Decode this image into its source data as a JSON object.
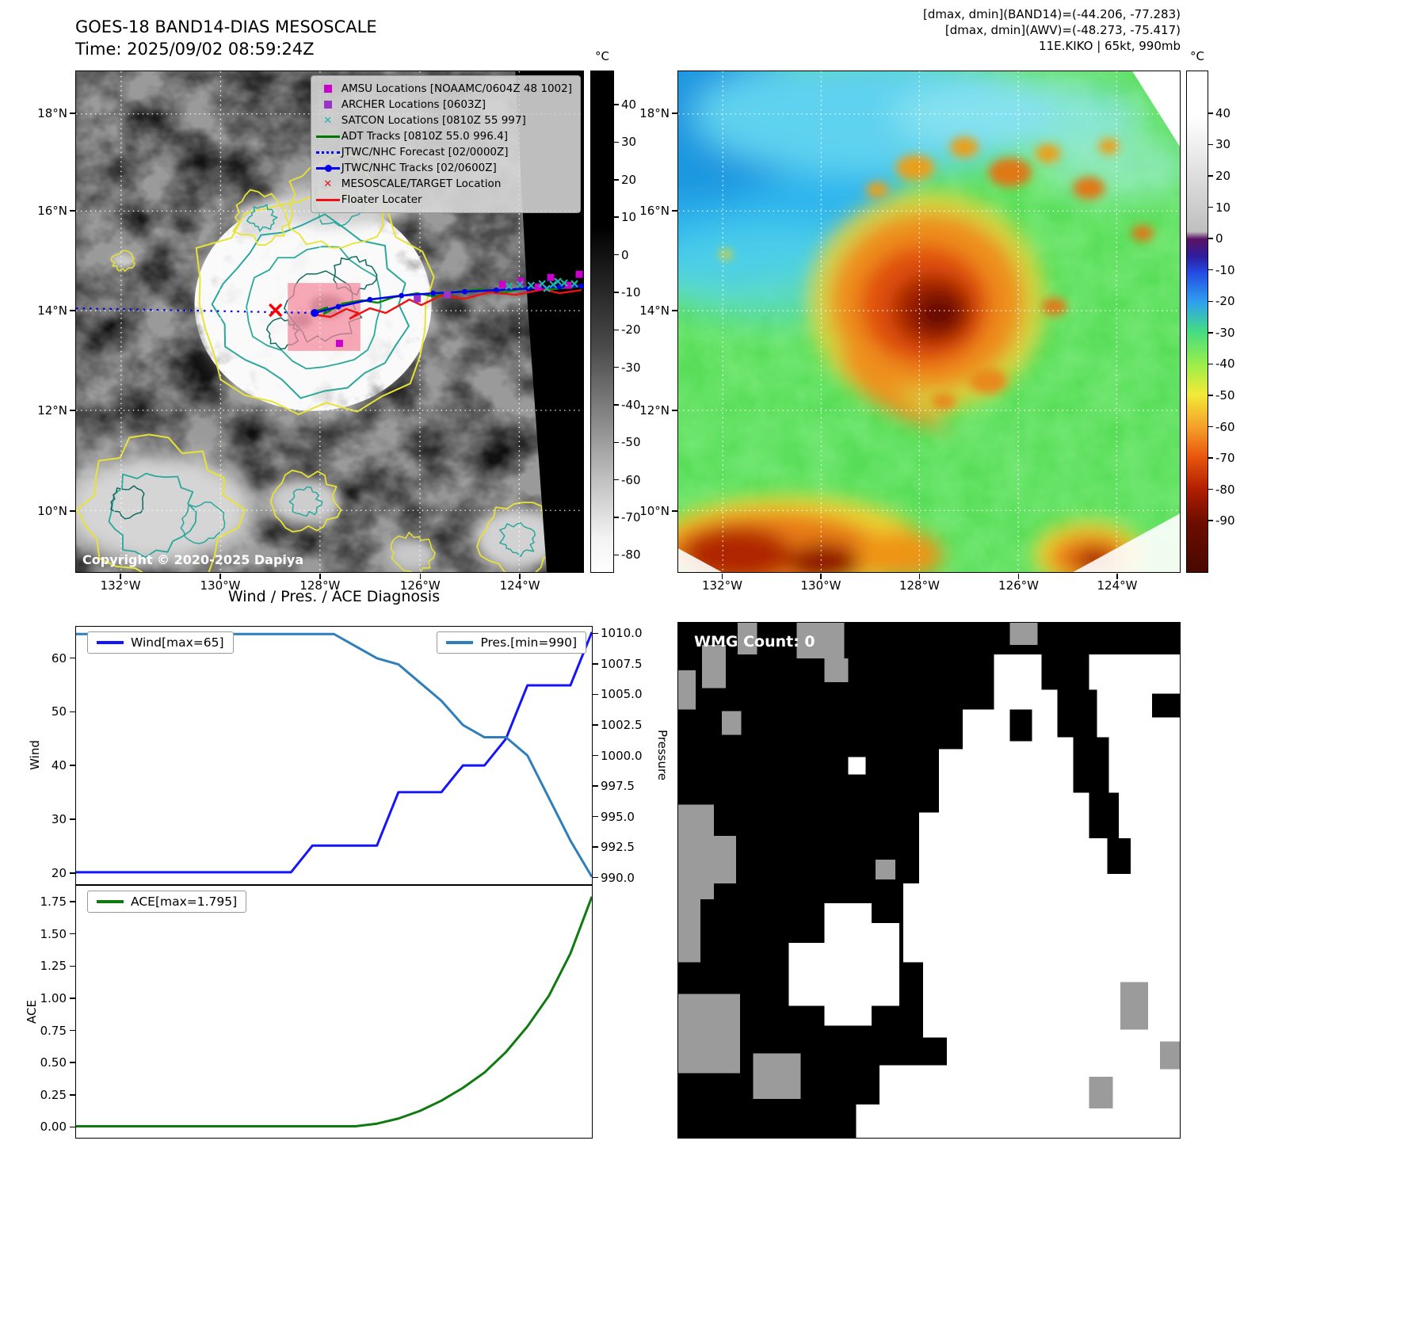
{
  "left_map": {
    "title": "GOES-18 BAND14-DIAS MESOSCALE",
    "time": "Time: 2025/09/02 08:59:24Z",
    "copyright": "Copyright © 2020-2025 Dapiya",
    "colorbar_unit": "°C",
    "colorbar_ticks": [
      "40",
      "30",
      "20",
      "10",
      "0",
      "-10",
      "-20",
      "-30",
      "-40",
      "-50",
      "-60",
      "-70",
      "-80"
    ],
    "x_ticks": [
      "132°W",
      "130°W",
      "128°W",
      "126°W",
      "124°W"
    ],
    "y_ticks": [
      "18°N",
      "16°N",
      "14°N",
      "12°N",
      "10°N"
    ],
    "legend": [
      {
        "label": "AMSU Locations [NOAAMC/0604Z 48 1002]",
        "marker": "square",
        "color": "#cc00cc"
      },
      {
        "label": "ARCHER Locations [0603Z]",
        "marker": "square",
        "color": "#9933cc"
      },
      {
        "label": "SATCON Locations [0810Z 55 997]",
        "marker": "x",
        "color": "#20b2aa"
      },
      {
        "label": "ADT Tracks [0810Z 55.0 996.4]",
        "marker": "line",
        "color": "#007700"
      },
      {
        "label": "JTWC/NHC Forecast [02/0000Z]",
        "marker": "dotted",
        "color": "#0000ee"
      },
      {
        "label": "JTWC/NHC Tracks [02/0600Z]",
        "marker": "line-dot",
        "color": "#0000ee"
      },
      {
        "label": "MESOSCALE/TARGET Location",
        "marker": "x",
        "color": "#ee1111"
      },
      {
        "label": "Floater Locater",
        "marker": "line",
        "color": "#ee1111"
      }
    ]
  },
  "right_map": {
    "header_line1": "[dmax, dmin](BAND14)=(-44.206, -77.283)",
    "header_line2": "[dmax, dmin](AWV)=(-48.273, -75.417)",
    "header_line3": "11E.KIKO | 65kt, 990mb",
    "colorbar_unit": "°C",
    "colorbar_ticks": [
      "40",
      "30",
      "20",
      "10",
      "0",
      "-10",
      "-20",
      "-30",
      "-40",
      "-50",
      "-60",
      "-70",
      "-80",
      "-90"
    ],
    "x_ticks": [
      "132°W",
      "130°W",
      "128°W",
      "126°W",
      "124°W"
    ],
    "y_ticks": [
      "18°N",
      "16°N",
      "14°N",
      "12°N",
      "10°N"
    ]
  },
  "diagnosis": {
    "title": "Wind / Pres. / ACE Diagnosis"
  },
  "wmg": {
    "label": "WMG Count: 0"
  },
  "chart_data": [
    {
      "type": "line",
      "title": "Wind / Pres. / ACE Diagnosis",
      "x": [
        0,
        1,
        2,
        3,
        4,
        5,
        6,
        7,
        8,
        9,
        10,
        11,
        12,
        13,
        14,
        15,
        16,
        17,
        18,
        19,
        20,
        21,
        22,
        23,
        24
      ],
      "series": [
        {
          "name": "Wind[max=65]",
          "axis": "left",
          "color": "#1414ff",
          "values": [
            20,
            20,
            20,
            20,
            20,
            20,
            20,
            20,
            20,
            20,
            20,
            25,
            25,
            25,
            25,
            35,
            35,
            35,
            40,
            40,
            45,
            55,
            55,
            55,
            65
          ]
        },
        {
          "name": "Pres.[min=990]",
          "axis": "right",
          "color": "#2e7ebb",
          "values": [
            1010,
            1010,
            1010,
            1010,
            1010,
            1010,
            1010,
            1010,
            1010,
            1010,
            1010,
            1010,
            1010,
            1009,
            1008,
            1007.5,
            1006,
            1004.5,
            1002.5,
            1001.5,
            1001.5,
            1000,
            996.5,
            993,
            990
          ]
        }
      ],
      "left_axis": {
        "label": "Wind",
        "ticks": [
          "20",
          "30",
          "40",
          "50",
          "60"
        ],
        "range": [
          17.75,
          66
        ]
      },
      "right_axis": {
        "label": "Pressure",
        "ticks": [
          "1010.0",
          "1007.5",
          "1005.0",
          "1002.5",
          "1000.0",
          "997.5",
          "995.0",
          "992.5",
          "990.0"
        ],
        "range": [
          989.4,
          1010.6
        ]
      },
      "grid": false,
      "legend_position": "upper-left and upper-right"
    },
    {
      "type": "line",
      "x": [
        0,
        1,
        2,
        3,
        4,
        5,
        6,
        7,
        8,
        9,
        10,
        11,
        12,
        13,
        14,
        15,
        16,
        17,
        18,
        19,
        20,
        21,
        22,
        23,
        24
      ],
      "series": [
        {
          "name": "ACE[max=1.795]",
          "axis": "left",
          "color": "#0f7a0f",
          "values": [
            0,
            0,
            0,
            0,
            0,
            0,
            0,
            0,
            0,
            0,
            0,
            0,
            0,
            0,
            0.02,
            0.06,
            0.12,
            0.2,
            0.3,
            0.42,
            0.58,
            0.78,
            1.02,
            1.35,
            1.795
          ]
        }
      ],
      "left_axis": {
        "label": "ACE",
        "ticks": [
          "0.00",
          "0.25",
          "0.50",
          "0.75",
          "1.00",
          "1.25",
          "1.50",
          "1.75"
        ],
        "range": [
          -0.09,
          1.88
        ]
      },
      "grid": false,
      "legend_position": "upper-left"
    }
  ]
}
